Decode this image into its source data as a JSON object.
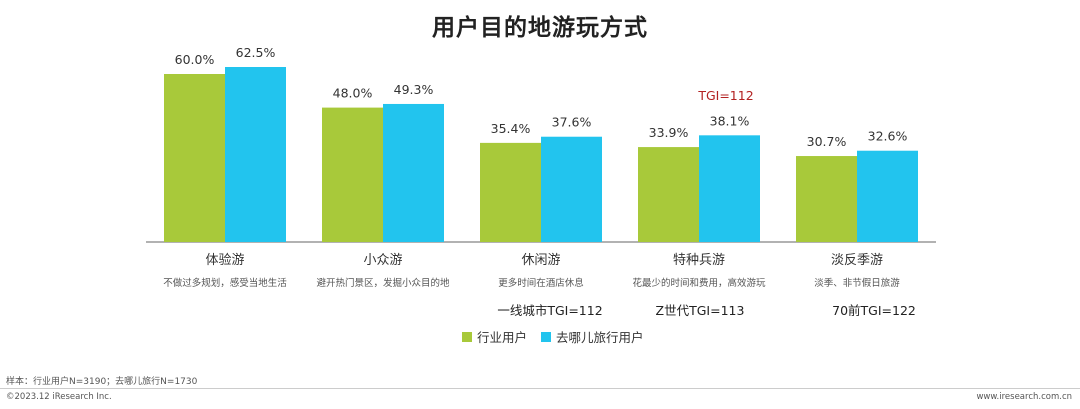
{
  "page": {
    "tgi_callout": "TGI=112",
    "tgi_notes": [
      "一线城市TGI=112",
      "Z世代TGI=113",
      "70前TGI=122"
    ],
    "sample_note": "样本：行业用户N=3190；去哪儿旅行N=1730",
    "copyright": "©2023.12 iResearch Inc.",
    "site": "www.iresearch.com.cn"
  },
  "chart_data": {
    "type": "bar",
    "title": "用户目的地游玩方式",
    "categories": [
      "体验游",
      "小众游",
      "休闲游",
      "特种兵游",
      "淡反季游"
    ],
    "descriptions": [
      "不做过多规划，感受当地生活",
      "避开热门景区，发掘小众目的地",
      "更多时间在酒店休息",
      "花最少的时间和费用，高效游玩",
      "淡季、非节假日旅游"
    ],
    "series": [
      {
        "name": "行业用户",
        "values": [
          60.0,
          48.0,
          35.4,
          33.9,
          30.7
        ],
        "labels": [
          "60.0%",
          "48.0%",
          "35.4%",
          "33.9%",
          "30.7%"
        ],
        "color": "#a8c93a"
      },
      {
        "name": "去哪儿旅行用户",
        "values": [
          62.5,
          49.3,
          37.6,
          38.1,
          32.6
        ],
        "labels": [
          "62.5%",
          "49.3%",
          "37.6%",
          "38.1%",
          "32.6%"
        ],
        "color": "#22c4ee"
      }
    ],
    "ylim": [
      0,
      62.5
    ],
    "grid": false,
    "legend": "bottom"
  }
}
